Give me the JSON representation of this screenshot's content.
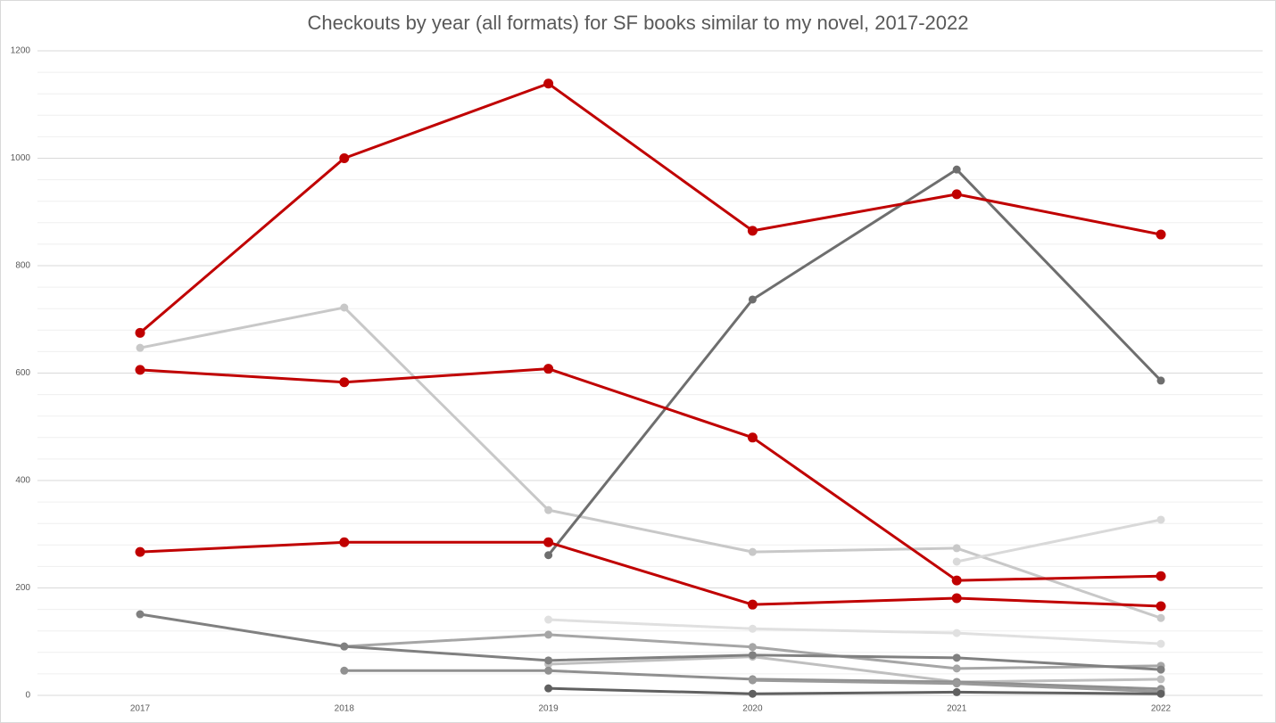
{
  "chart_data": {
    "type": "line",
    "title": "Checkouts by year (all formats) for SF books similar to my novel, 2017-2022",
    "categories": [
      "2017",
      "2018",
      "2019",
      "2020",
      "2021",
      "2022"
    ],
    "ylim": [
      0,
      1200
    ],
    "yticks": [
      0,
      200,
      400,
      600,
      800,
      1000,
      1200
    ],
    "minor_yticks": [
      40,
      80,
      120,
      160,
      240,
      280,
      320,
      360,
      440,
      480,
      520,
      560,
      640,
      680,
      720,
      760,
      840,
      880,
      920,
      960,
      1040,
      1080,
      1120,
      1160
    ],
    "grid": true,
    "series": [
      {
        "color": "#c8c8c8",
        "values": [
          647,
          722,
          345,
          267,
          274,
          144
        ]
      },
      {
        "color": "#d9d9d9",
        "values": [
          null,
          null,
          null,
          null,
          249,
          327
        ]
      },
      {
        "color": "#e0e0e0",
        "values": [
          null,
          null,
          141,
          124,
          116,
          96
        ]
      },
      {
        "color": "#a6a6a6",
        "values": [
          null,
          91,
          113,
          90,
          50,
          55
        ]
      },
      {
        "color": "#bfbfbf",
        "values": [
          null,
          null,
          58,
          72,
          25,
          30
        ]
      },
      {
        "color": "#808080",
        "values": [
          151,
          91,
          65,
          75,
          70,
          48
        ]
      },
      {
        "color": "#909090",
        "values": [
          null,
          46,
          46,
          30,
          25,
          12
        ]
      },
      {
        "color": "#999999",
        "values": [
          null,
          null,
          null,
          28,
          22,
          7
        ]
      },
      {
        "color": "#606060",
        "values": [
          null,
          null,
          13,
          3,
          6,
          3
        ]
      },
      {
        "color": "#6e6e6e",
        "values": [
          null,
          null,
          261,
          737,
          979,
          586
        ]
      },
      {
        "color": "#c00000",
        "values": [
          267,
          285,
          285,
          169,
          181,
          166
        ]
      },
      {
        "color": "#c00000",
        "values": [
          606,
          583,
          608,
          480,
          214,
          222
        ]
      },
      {
        "color": "#c00000",
        "values": [
          675,
          1000,
          1139,
          865,
          933,
          858
        ]
      }
    ]
  }
}
